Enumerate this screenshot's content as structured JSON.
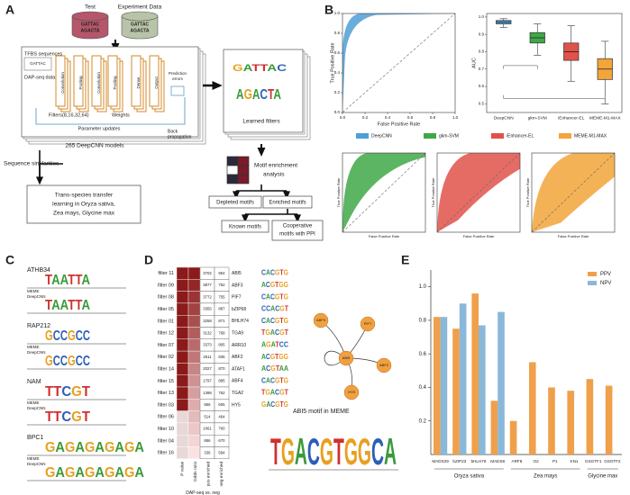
{
  "panel_labels": [
    "A",
    "B",
    "C",
    "D",
    "E"
  ],
  "panel_a": {
    "test": "Test",
    "experiment": "Experiment Data",
    "seq1": "GATTAC",
    "seq2": "AGACTA",
    "tfbs": "TFBS sequences",
    "dap": "DAP-seq data",
    "layers": [
      "Convolution",
      "Pooling",
      "Convolution",
      "Pooling",
      "Dense",
      "Output"
    ],
    "filters": "Filters(8,16,32,64)",
    "weights": "Weights",
    "param": "Parameter updates",
    "back": [
      "Back",
      "propagation"
    ],
    "pred": [
      "Prediction",
      "errors"
    ],
    "models": "265 DeepCNN models",
    "similarity": "Sequence similarities",
    "transfer": [
      "Trans-species transfer",
      "learning in Oryza sativa,",
      "Zea mays, Glycine max"
    ],
    "learned": "Learned filters",
    "enrich": [
      "Motif enrichment",
      "analysis"
    ],
    "depleted": "Depleted motifs",
    "enriched": "Enriched motifs",
    "known": "Known motifs",
    "coop": [
      "Cooperative",
      "motifs with PPI"
    ]
  },
  "panel_b": {
    "xlabel": "False Positive Rate",
    "ylabel": "True Positive Rate",
    "ticks": [
      {
        "value": 0,
        "label": "0.0"
      },
      0.2,
      0.4,
      0.6,
      0.8,
      {
        "value": 1,
        "label": "1.0"
      }
    ]
  },
  "panel_c": {
    "meme_label": "MEME",
    "deep_label": "DeepCNN",
    "motifs": [
      {
        "name": "ATHB34",
        "meme": "TAATTA",
        "deep": "TAATTA"
      },
      {
        "name": "RAP212",
        "meme": "GCCGCC",
        "deep": "GCCGCC"
      },
      {
        "name": "NAM",
        "meme": "TTCGT",
        "deep": "TTCGT"
      },
      {
        "name": "BPC1",
        "meme": "GAGAGAGAGA",
        "deep": "GAGAGAGAGA"
      }
    ]
  },
  "panel_d": {
    "rows": [
      {
        "filter": "filter 11",
        "pos": 3702,
        "neg": 964,
        "motif": "ABI5",
        "logo": "CACGTG"
      },
      {
        "filter": "filter 09",
        "pos": 3877,
        "neg": 752,
        "motif": "ABF3",
        "logo": "ACGTGG"
      },
      {
        "filter": "filter 08",
        "pos": 3772,
        "neg": 755,
        "motif": "PIF7",
        "logo": "CACGTG"
      },
      {
        "filter": "filter 05",
        "pos": 3355,
        "neg": 887,
        "motif": "bZIP68",
        "logo": "CCACGT"
      },
      {
        "filter": "filter 01",
        "pos": 3258,
        "neg": 871,
        "motif": "BHLH74",
        "logo": "CACGTG"
      },
      {
        "filter": "filter 12",
        "pos": 3132,
        "neg": 768,
        "motif": "TGA9",
        "logo": "TGACGT"
      },
      {
        "filter": "filter 07",
        "pos": 3373,
        "neg": 805,
        "motif": "ARR10",
        "logo": "AGATCC"
      },
      {
        "filter": "filter 02",
        "pos": 2511,
        "neg": 835,
        "motif": "ABF2",
        "logo": "ACGTGG"
      },
      {
        "filter": "filter 14",
        "pos": 2027,
        "neg": 870,
        "motif": "ATAF1",
        "logo": "ACGTAA"
      },
      {
        "filter": "filter 15",
        "pos": 1797,
        "neg": 885,
        "motif": "ABF4",
        "logo": "CACGTG"
      },
      {
        "filter": "filter 13",
        "pos": 1398,
        "neg": 752,
        "motif": "TGA2",
        "logo": "TGACGT"
      },
      {
        "filter": "filter 03",
        "pos": 866,
        "neg": 605,
        "motif": "HY5",
        "logo": "GACGTG"
      },
      {
        "filter": "filter 06",
        "pos": 514,
        "neg": 464
      },
      {
        "filter": "filter 10",
        "pos": 1061,
        "neg": 760
      },
      {
        "filter": "filter 04",
        "pos": 856,
        "neg": 670
      },
      {
        "filter": "filter 16",
        "pos": 336,
        "neg": 594
      }
    ],
    "col_labels": [
      "P value",
      "Odds ratio",
      "pos enriched",
      "neg enriched"
    ],
    "group_label": "DAP-seq vs. neg",
    "nodes": [
      "ABF3",
      "PIF7",
      "ABI5",
      "ABF2",
      "HY5"
    ],
    "meme_title": "ABI5 motif in MEME",
    "meme_logo": "TGACGTGGCA"
  },
  "chart_data": [
    {
      "type": "box",
      "ylabel": "AUC",
      "categories": [
        "DeepCNN",
        "gkm-SVM",
        "iEnhancer-EL",
        "MEME-M1-MAX"
      ],
      "colors": [
        "#4e9fd6",
        "#3fa847",
        "#e0524a",
        "#f2a53a"
      ],
      "boxes": [
        {
          "min": 0.94,
          "q1": 0.96,
          "median": 0.97,
          "q3": 0.98,
          "max": 0.99
        },
        {
          "min": 0.78,
          "q1": 0.85,
          "median": 0.88,
          "q3": 0.91,
          "max": 0.96
        },
        {
          "min": 0.63,
          "q1": 0.75,
          "median": 0.8,
          "q3": 0.85,
          "max": 0.95
        },
        {
          "min": 0.5,
          "q1": 0.64,
          "median": 0.7,
          "q3": 0.76,
          "max": 0.86
        }
      ],
      "ylim": [
        0.45,
        1.02
      ],
      "yticks": [
        0.5,
        0.6,
        0.7,
        0.8,
        0.9,
        {
          "value": 1,
          "label": "1.0"
        }
      ]
    },
    {
      "type": "bar",
      "categories": [
        "MADS29",
        "bZIP23",
        "bHLH78",
        "MADS8",
        "ARF8",
        "O2",
        "P1",
        "KN1",
        "GSGTF1",
        "GSGTF2"
      ],
      "series": [
        {
          "name": "PPV",
          "color": "#f0a04b",
          "values": [
            0.82,
            0.75,
            0.96,
            0.32,
            0.2,
            0.55,
            0.4,
            0.38,
            0.45,
            0.41
          ]
        },
        {
          "name": "NPV",
          "color": "#8ab8d9",
          "values": [
            0.82,
            0.9,
            0.77,
            0.85,
            null,
            null,
            null,
            null,
            null,
            null
          ]
        }
      ],
      "group_labels": [
        "Oryza sativa",
        "Zea mays",
        "Glycine max"
      ],
      "ylim": [
        0,
        1.1
      ],
      "yticks": [
        0.2,
        0.4,
        0.6,
        0.8,
        {
          "value": 1,
          "label": "1.0"
        }
      ],
      "legend": "upper right"
    }
  ]
}
